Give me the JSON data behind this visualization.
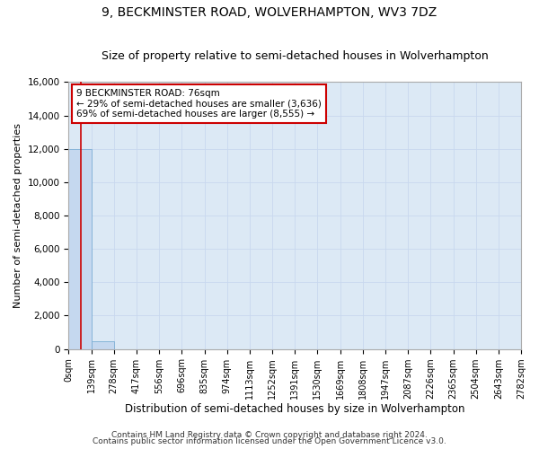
{
  "title": "9, BECKMINSTER ROAD, WOLVERHAMPTON, WV3 7DZ",
  "subtitle": "Size of property relative to semi-detached houses in Wolverhampton",
  "xlabel_dist": "Distribution of semi-detached houses by size in Wolverhampton",
  "ylabel": "Number of semi-detached properties",
  "footer1": "Contains HM Land Registry data © Crown copyright and database right 2024.",
  "footer2": "Contains public sector information licensed under the Open Government Licence v3.0.",
  "bin_edges": [
    0,
    139,
    278,
    417,
    556,
    696,
    835,
    974,
    1113,
    1252,
    1391,
    1530,
    1669,
    1808,
    1947,
    2087,
    2226,
    2365,
    2504,
    2643,
    2782
  ],
  "bar_heights": [
    12000,
    450,
    0,
    0,
    0,
    0,
    0,
    0,
    0,
    0,
    0,
    0,
    0,
    0,
    0,
    0,
    0,
    0,
    0,
    0
  ],
  "bar_color": "#c5d8ef",
  "bar_edgecolor": "#7baed4",
  "property_size": 76,
  "red_line_color": "#cc0000",
  "annotation_line1": "9 BECKMINSTER ROAD: 76sqm",
  "annotation_line2": "← 29% of semi-detached houses are smaller (3,636)",
  "annotation_line3": "69% of semi-detached houses are larger (8,555) →",
  "annotation_box_edgecolor": "#cc0000",
  "annotation_box_facecolor": "#ffffff",
  "ylim": [
    0,
    16000
  ],
  "yticks": [
    0,
    2000,
    4000,
    6000,
    8000,
    10000,
    12000,
    14000,
    16000
  ],
  "grid_color": "#c8d8ee",
  "bg_color": "#dce9f5",
  "title_fontsize": 10,
  "subtitle_fontsize": 9,
  "ylabel_fontsize": 8,
  "xlabel_fontsize": 8.5,
  "tick_fontsize": 7,
  "footer_fontsize": 6.5,
  "tick_labels": [
    "0sqm",
    "139sqm",
    "278sqm",
    "417sqm",
    "556sqm",
    "696sqm",
    "835sqm",
    "974sqm",
    "1113sqm",
    "1252sqm",
    "1391sqm",
    "1530sqm",
    "1669sqm",
    "1808sqm",
    "1947sqm",
    "2087sqm",
    "2226sqm",
    "2365sqm",
    "2504sqm",
    "2643sqm",
    "2782sqm"
  ]
}
